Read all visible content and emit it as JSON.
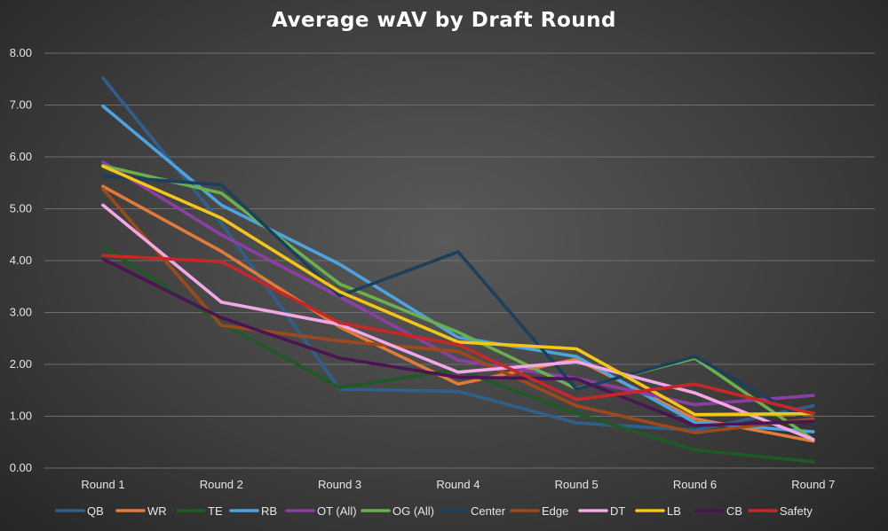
{
  "chart_data": {
    "type": "line",
    "title": "Average wAV by Draft Round",
    "xlabel": "",
    "ylabel": "",
    "ylim": [
      0,
      8
    ],
    "yticks": [
      "0.00",
      "1.00",
      "2.00",
      "3.00",
      "4.00",
      "5.00",
      "6.00",
      "7.00",
      "8.00"
    ],
    "grid": true,
    "legend_position": "bottom",
    "categories": [
      "Round 1",
      "Round 2",
      "Round 3",
      "Round 4",
      "Round 5",
      "Round 6",
      "Round 7"
    ],
    "series": [
      {
        "name": "QB",
        "color": "#2f5f8a",
        "values": [
          7.52,
          4.72,
          1.52,
          1.48,
          0.87,
          0.73,
          1.2
        ]
      },
      {
        "name": "WR",
        "color": "#e07b39",
        "values": [
          5.43,
          4.18,
          2.72,
          1.62,
          2.1,
          0.95,
          0.52
        ]
      },
      {
        "name": "TE",
        "color": "#1e5a26",
        "values": [
          4.27,
          2.8,
          1.55,
          1.9,
          1.05,
          0.35,
          0.12
        ]
      },
      {
        "name": "RB",
        "color": "#4da3e0",
        "values": [
          6.98,
          5.07,
          3.93,
          2.52,
          2.15,
          0.88,
          0.7
        ]
      },
      {
        "name": "OT (All)",
        "color": "#8c3fa3",
        "values": [
          5.9,
          4.5,
          3.3,
          2.08,
          1.73,
          1.22,
          1.4
        ]
      },
      {
        "name": "OG (All)",
        "color": "#6ab04c",
        "values": [
          5.83,
          5.3,
          3.55,
          2.62,
          1.53,
          2.12,
          0.55
        ]
      },
      {
        "name": "Center",
        "color": "#1c3f5c",
        "values": [
          5.63,
          5.46,
          3.32,
          4.17,
          1.52,
          2.15,
          0.85
        ]
      },
      {
        "name": "Edge",
        "color": "#9c4a1c",
        "values": [
          5.38,
          2.75,
          2.45,
          2.25,
          1.2,
          0.68,
          0.95
        ]
      },
      {
        "name": "DT",
        "color": "#f2a8e6",
        "values": [
          5.07,
          3.2,
          2.77,
          1.85,
          2.05,
          1.45,
          0.55
        ]
      },
      {
        "name": "LB",
        "color": "#f5c518",
        "values": [
          5.82,
          4.82,
          3.4,
          2.43,
          2.3,
          1.03,
          1.05
        ]
      },
      {
        "name": "CB",
        "color": "#4a1552",
        "values": [
          4.03,
          2.9,
          2.12,
          1.75,
          1.72,
          0.82,
          0.9
        ]
      },
      {
        "name": "Safety",
        "color": "#c62828",
        "values": [
          4.1,
          3.98,
          2.8,
          2.38,
          1.32,
          1.62,
          1.05
        ]
      }
    ]
  }
}
